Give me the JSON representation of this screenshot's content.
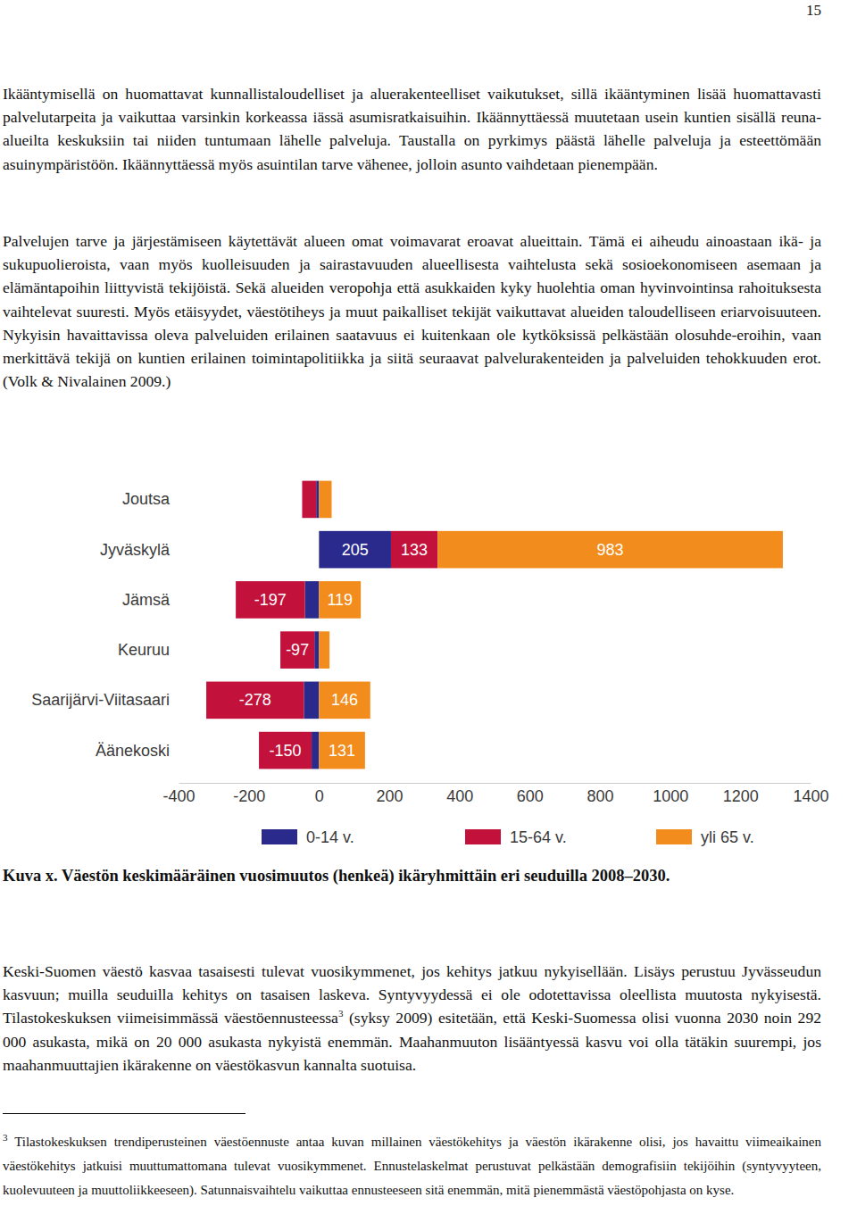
{
  "page_number": "15",
  "paragraphs": [
    "Ikääntymisellä on huomattavat kunnallistaloudelliset ja aluerakenteelliset vaikutukset, sillä ikääntyminen lisää huomattavasti palvelutarpeita ja vaikuttaa varsinkin korkeassa iässä asumisratkaisuihin. Ikäännyttäessä muutetaan usein kuntien sisällä reuna-alueilta keskuksiin tai niiden tuntumaan lähelle palveluja. Taustalla on pyrkimys päästä lähelle palveluja ja esteettömään asuinympäristöön. Ikäännyttäessä myös asuintilan tarve vähenee, jolloin asunto vaihdetaan pienempään.",
    "Palvelujen tarve ja järjestämiseen käytettävät alueen omat voimavarat eroavat alueittain. Tämä ei aiheudu ainoastaan ikä- ja sukupuolieroista, vaan myös kuolleisuuden ja sairastavuuden alueellisesta vaihtelusta sekä sosioekonomiseen asemaan ja elämäntapoihin liittyvistä tekijöistä. Sekä alueiden veropohja että asukkaiden kyky huolehtia oman hyvinvointinsa rahoituksesta vaihtelevat suuresti. Myös etäisyydet, väestötiheys ja muut paikalliset tekijät vaikuttavat alueiden taloudelliseen eriarvoisuuteen. Nykyisin havaittavissa oleva palveluiden erilainen saatavuus ei kuitenkaan ole kytköksissä pelkästään olosuhde-eroihin, vaan merkittävä tekijä on kuntien erilainen toimintapolitiikka ja siitä seuraavat palvelurakenteiden ja palveluiden tehokkuuden erot. (Volk & Nivalainen 2009.)"
  ],
  "caption": "Kuva x. Väestön keskimääräinen vuosimuutos (henkeä) ikäryhmittäin eri seuduilla 2008–2030.",
  "closing_paragraph": {
    "text_before": "Keski-Suomen väestö kasvaa tasaisesti tulevat vuosikymmenet, jos kehitys jatkuu nykyisellään. Lisäys perustuu Jyvässeudun kasvuun; muilla seuduilla kehitys on tasaisen laskeva. Syntyvyydessä ei ole odotettavissa oleellista muutosta nykyisestä. Tilastokeskuksen viimeisimmässä väestöennusteessa",
    "footnote_mark": "3",
    "text_after": " (syksy 2009) esitetään, että Keski-Suomessa olisi vuonna 2030 noin 292 000 asukasta, mikä on 20 000 asukasta nykyistä enemmän. Maahanmuuton lisääntyessä kasvu voi olla tätäkin suurempi, jos maahanmuuttajien ikärakenne on väestökasvun kannalta suotuisa."
  },
  "footnote": {
    "mark": "3",
    "text": "Tilastokeskuksen trendiperusteinen väestöennuste antaa kuvan millainen väestökehitys ja väestön ikärakenne olisi, jos havaittu viimeaikainen väestökehitys jatkuisi muuttumattomana tulevat vuosikymmenet. Ennustelaskelmat perustuvat pelkästään demografisiin tekijöihin (syntyvyyteen, kuolevuuteen ja muuttoliikkeeseen). Satunnaisvaihtelu vaikuttaa ennusteeseen sitä enemmän, mitä pienemmästä väestöpohjasta on kyse."
  },
  "chart_data": {
    "type": "bar",
    "orientation": "horizontal",
    "stacked": true,
    "data_labels": true,
    "grid": false,
    "legend": "bottom",
    "categories": [
      "Joutsa",
      "Jyväskylä",
      "Jämsä",
      "Keuruu",
      "Saarijärvi-Viitasaari",
      "Äänekoski"
    ],
    "xlim": [
      -400,
      1400
    ],
    "xticks": [
      -400,
      -200,
      0,
      200,
      400,
      600,
      800,
      1000,
      1200,
      1400
    ],
    "series": [
      {
        "name": "0-14 v.",
        "color": "#2a2a8c",
        "values": [
          -8,
          205,
          -40,
          -13,
          -43,
          -21
        ],
        "value_labels": [
          null,
          "205",
          null,
          null,
          null,
          null
        ]
      },
      {
        "name": "15-64 v.",
        "color": "#c2123c",
        "values": [
          -40,
          133,
          -197,
          -97,
          -278,
          -150
        ],
        "value_labels": [
          null,
          "133",
          "-197",
          "-97",
          "-278",
          "-150"
        ]
      },
      {
        "name": "yli 65 v.",
        "color": "#f28c1c",
        "values": [
          36,
          983,
          119,
          30,
          146,
          131
        ],
        "value_labels": [
          null,
          "983",
          "119",
          null,
          "146",
          "131"
        ]
      }
    ]
  }
}
